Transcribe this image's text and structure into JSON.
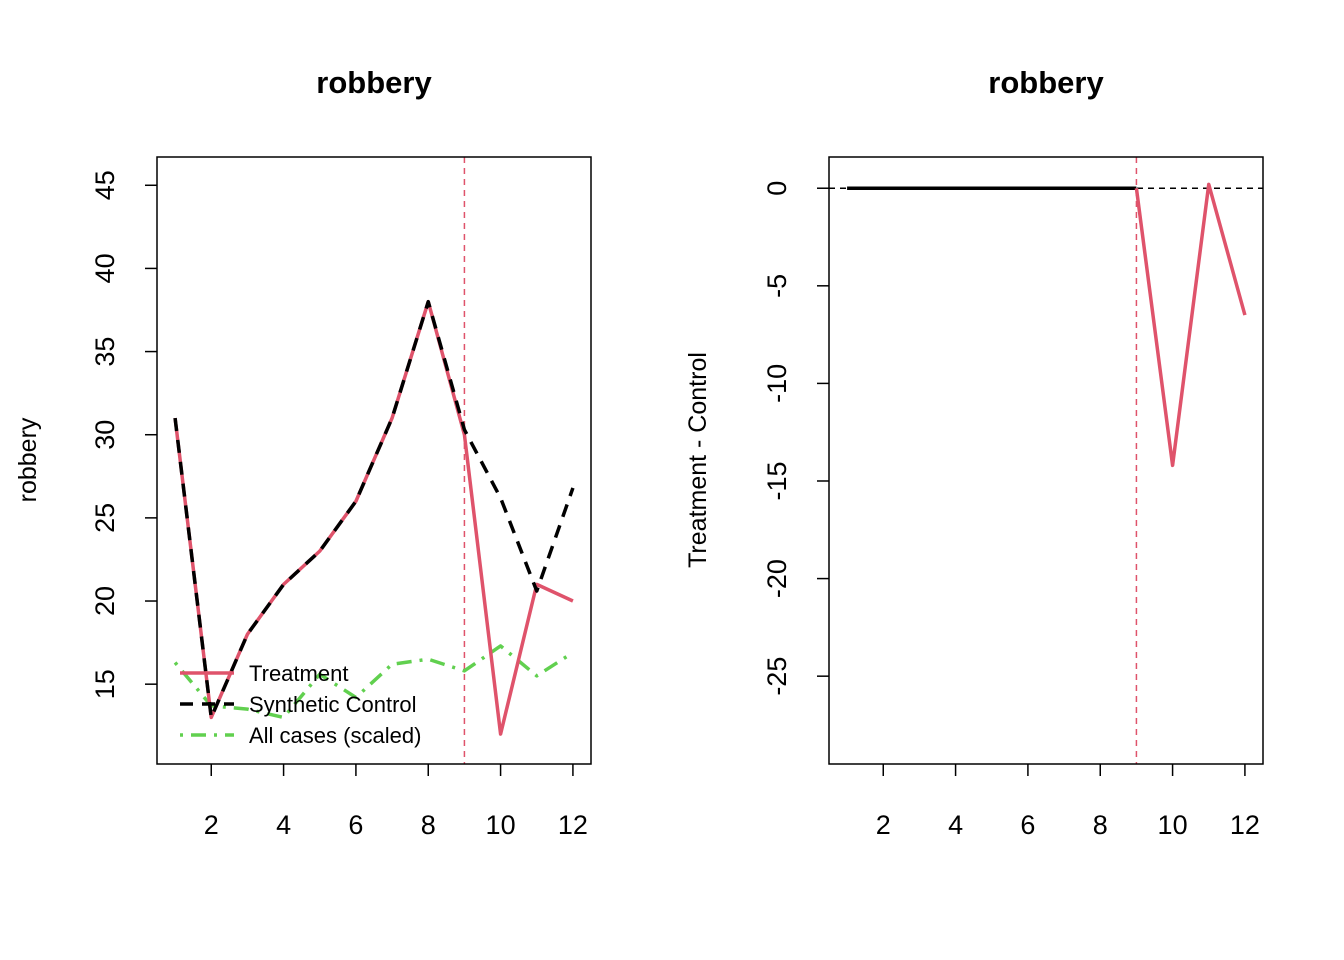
{
  "colors": {
    "treatment": "#DF536B",
    "synthetic": "#000000",
    "all_cases": "#61D04F",
    "vline": "#DF536B",
    "axis": "#000000"
  },
  "chart_data": [
    {
      "type": "line",
      "title": "robbery",
      "xlabel": "",
      "ylabel": "robbery",
      "xlim": [
        0.5,
        12.5
      ],
      "ylim": [
        10.2,
        46.7
      ],
      "xticks": [
        2,
        4,
        6,
        8,
        10,
        12
      ],
      "yticks": [
        15,
        20,
        25,
        30,
        35,
        40,
        45
      ],
      "vline": 9,
      "legend_position": "bottom-left",
      "x": [
        1,
        2,
        3,
        4,
        5,
        6,
        7,
        8,
        9,
        10,
        11,
        12
      ],
      "series": [
        {
          "name": "Treatment",
          "style": "solid",
          "values": [
            31,
            13,
            18,
            21,
            23,
            26,
            31,
            38,
            30,
            12,
            21,
            20
          ]
        },
        {
          "name": "Synthetic Control",
          "style": "dashed",
          "values": [
            31,
            13,
            18,
            21,
            23,
            26,
            31,
            38,
            30.3,
            26.2,
            20.6,
            26.8
          ]
        },
        {
          "name": "All cases (scaled)",
          "style": "dotdash",
          "values": [
            16.3,
            13.7,
            13.5,
            13.0,
            15.6,
            14.2,
            16.2,
            16.5,
            15.8,
            17.3,
            15.5,
            16.9
          ]
        }
      ]
    },
    {
      "type": "line",
      "title": "robbery",
      "xlabel": "",
      "ylabel": "Treatment - Control",
      "xlim": [
        0.5,
        12.5
      ],
      "ylim": [
        -29.5,
        1.6
      ],
      "xticks": [
        2,
        4,
        6,
        8,
        10,
        12
      ],
      "yticks": [
        0,
        -5,
        -10,
        -15,
        -20,
        -25
      ],
      "vline": 9,
      "hline": 0,
      "x": [
        1,
        2,
        3,
        4,
        5,
        6,
        7,
        8,
        9,
        10,
        11,
        12
      ],
      "series": [
        {
          "name": "",
          "style": "solid",
          "values": [
            0,
            0,
            0,
            0,
            0,
            0,
            0,
            0,
            0,
            -14.2,
            0.2,
            -6.5
          ]
        }
      ]
    }
  ]
}
